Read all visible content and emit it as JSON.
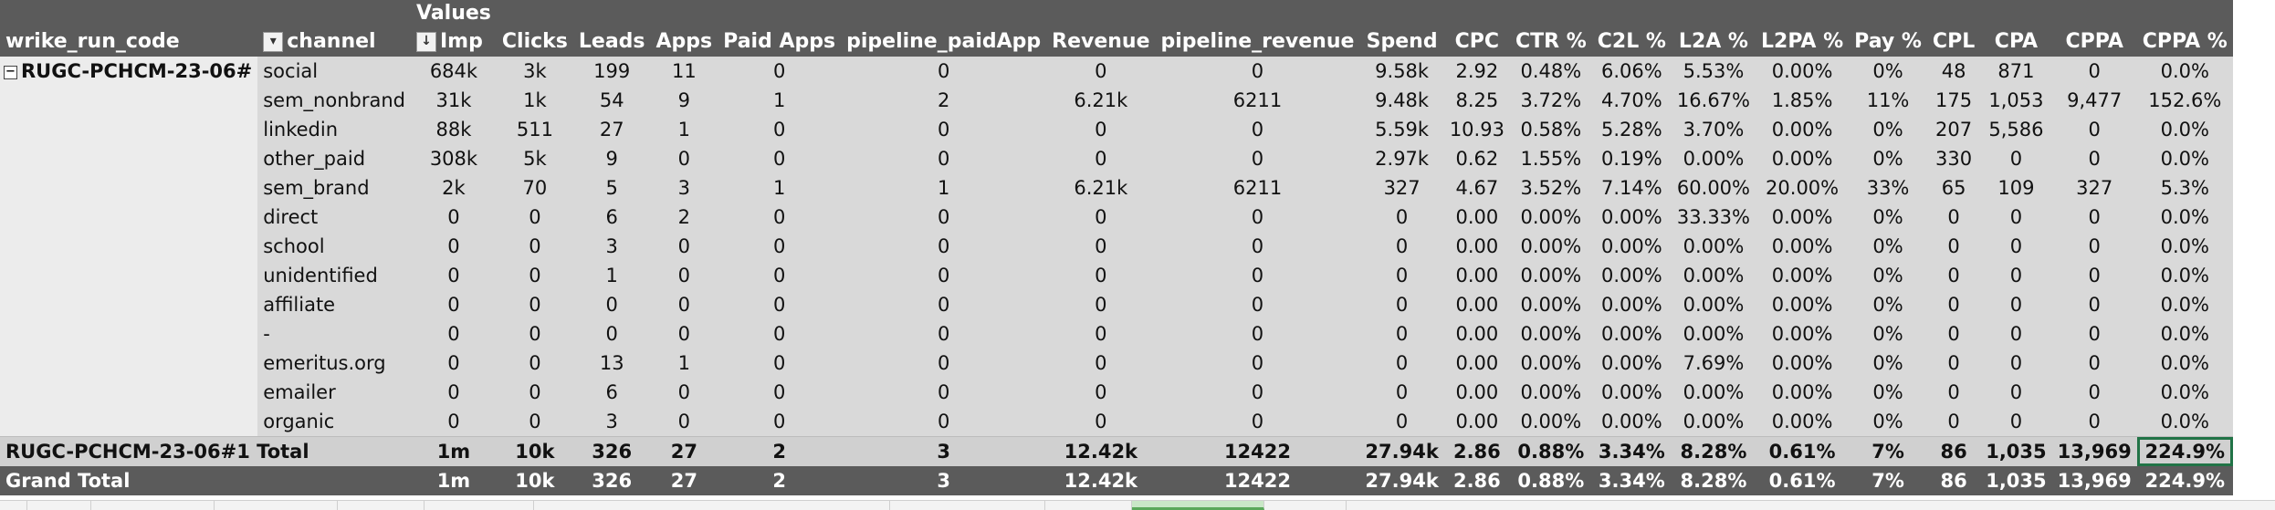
{
  "pivot": {
    "values_caption": "Values",
    "headers": {
      "row_field": "wrike_run_code",
      "col_field": "channel",
      "measures": [
        "Imp",
        "Clicks",
        "Leads",
        "Apps",
        "Paid Apps",
        "pipeline_paidApp",
        "Revenue",
        "pipeline_revenue",
        "Spend",
        "CPC",
        "CTR %",
        "C2L %",
        "L2A %",
        "L2PA %",
        "Pay %",
        "CPL",
        "CPA",
        "CPPA",
        "CPPA %"
      ]
    },
    "group_code": "RUGC-PCHCM-23-06#",
    "rows": [
      {
        "channel": "social",
        "cells": [
          "684k",
          "3k",
          "199",
          "11",
          "0",
          "0",
          "0",
          "0",
          "9.58k",
          "2.92",
          "0.48%",
          "6.06%",
          "5.53%",
          "0.00%",
          "0%",
          "48",
          "871",
          "0",
          "0.0%"
        ]
      },
      {
        "channel": "sem_nonbrand",
        "cells": [
          "31k",
          "1k",
          "54",
          "9",
          "1",
          "2",
          "6.21k",
          "6211",
          "9.48k",
          "8.25",
          "3.72%",
          "4.70%",
          "16.67%",
          "1.85%",
          "11%",
          "175",
          "1,053",
          "9,477",
          "152.6%"
        ]
      },
      {
        "channel": "linkedin",
        "cells": [
          "88k",
          "511",
          "27",
          "1",
          "0",
          "0",
          "0",
          "0",
          "5.59k",
          "10.93",
          "0.58%",
          "5.28%",
          "3.70%",
          "0.00%",
          "0%",
          "207",
          "5,586",
          "0",
          "0.0%"
        ]
      },
      {
        "channel": "other_paid",
        "cells": [
          "308k",
          "5k",
          "9",
          "0",
          "0",
          "0",
          "0",
          "0",
          "2.97k",
          "0.62",
          "1.55%",
          "0.19%",
          "0.00%",
          "0.00%",
          "0%",
          "330",
          "0",
          "0",
          "0.0%"
        ]
      },
      {
        "channel": "sem_brand",
        "cells": [
          "2k",
          "70",
          "5",
          "3",
          "1",
          "1",
          "6.21k",
          "6211",
          "327",
          "4.67",
          "3.52%",
          "7.14%",
          "60.00%",
          "20.00%",
          "33%",
          "65",
          "109",
          "327",
          "5.3%"
        ]
      },
      {
        "channel": "direct",
        "cells": [
          "0",
          "0",
          "6",
          "2",
          "0",
          "0",
          "0",
          "0",
          "0",
          "0.00",
          "0.00%",
          "0.00%",
          "33.33%",
          "0.00%",
          "0%",
          "0",
          "0",
          "0",
          "0.0%"
        ]
      },
      {
        "channel": "school",
        "cells": [
          "0",
          "0",
          "3",
          "0",
          "0",
          "0",
          "0",
          "0",
          "0",
          "0.00",
          "0.00%",
          "0.00%",
          "0.00%",
          "0.00%",
          "0%",
          "0",
          "0",
          "0",
          "0.0%"
        ]
      },
      {
        "channel": "unidentified",
        "cells": [
          "0",
          "0",
          "1",
          "0",
          "0",
          "0",
          "0",
          "0",
          "0",
          "0.00",
          "0.00%",
          "0.00%",
          "0.00%",
          "0.00%",
          "0%",
          "0",
          "0",
          "0",
          "0.0%"
        ]
      },
      {
        "channel": "affiliate",
        "cells": [
          "0",
          "0",
          "0",
          "0",
          "0",
          "0",
          "0",
          "0",
          "0",
          "0.00",
          "0.00%",
          "0.00%",
          "0.00%",
          "0.00%",
          "0%",
          "0",
          "0",
          "0",
          "0.0%"
        ]
      },
      {
        "channel": "-",
        "cells": [
          "0",
          "0",
          "0",
          "0",
          "0",
          "0",
          "0",
          "0",
          "0",
          "0.00",
          "0.00%",
          "0.00%",
          "0.00%",
          "0.00%",
          "0%",
          "0",
          "0",
          "0",
          "0.0%"
        ]
      },
      {
        "channel": "emeritus.org",
        "cells": [
          "0",
          "0",
          "13",
          "1",
          "0",
          "0",
          "0",
          "0",
          "0",
          "0.00",
          "0.00%",
          "0.00%",
          "7.69%",
          "0.00%",
          "0%",
          "0",
          "0",
          "0",
          "0.0%"
        ]
      },
      {
        "channel": "emailer",
        "cells": [
          "0",
          "0",
          "6",
          "0",
          "0",
          "0",
          "0",
          "0",
          "0",
          "0.00",
          "0.00%",
          "0.00%",
          "0.00%",
          "0.00%",
          "0%",
          "0",
          "0",
          "0",
          "0.0%"
        ]
      },
      {
        "channel": "organic",
        "cells": [
          "0",
          "0",
          "3",
          "0",
          "0",
          "0",
          "0",
          "0",
          "0",
          "0.00",
          "0.00%",
          "0.00%",
          "0.00%",
          "0.00%",
          "0%",
          "0",
          "0",
          "0",
          "0.0%"
        ]
      }
    ],
    "subtotal": {
      "label": "RUGC-PCHCM-23-06#1 Total",
      "cells": [
        "1m",
        "10k",
        "326",
        "27",
        "2",
        "3",
        "12.42k",
        "12422",
        "27.94k",
        "2.86",
        "0.88%",
        "3.34%",
        "8.28%",
        "0.61%",
        "7%",
        "86",
        "1,035",
        "13,969",
        "224.9%"
      ]
    },
    "grand_total": {
      "label": "Grand Total",
      "cells": [
        "1m",
        "10k",
        "326",
        "27",
        "2",
        "3",
        "12.42k",
        "12422",
        "27.94k",
        "2.86",
        "0.88%",
        "3.34%",
        "8.28%",
        "0.61%",
        "7%",
        "86",
        "1,035",
        "13,969",
        "224.9%"
      ]
    }
  },
  "icons": {
    "row_filter": "filter-sort-icon",
    "col_filter": "sort-descending-icon",
    "collapse": "collapse-minus-icon"
  },
  "colors": {
    "header_bg": "#5b5b5b",
    "row_bg": "#d9d9d9",
    "selection": "#217346"
  }
}
